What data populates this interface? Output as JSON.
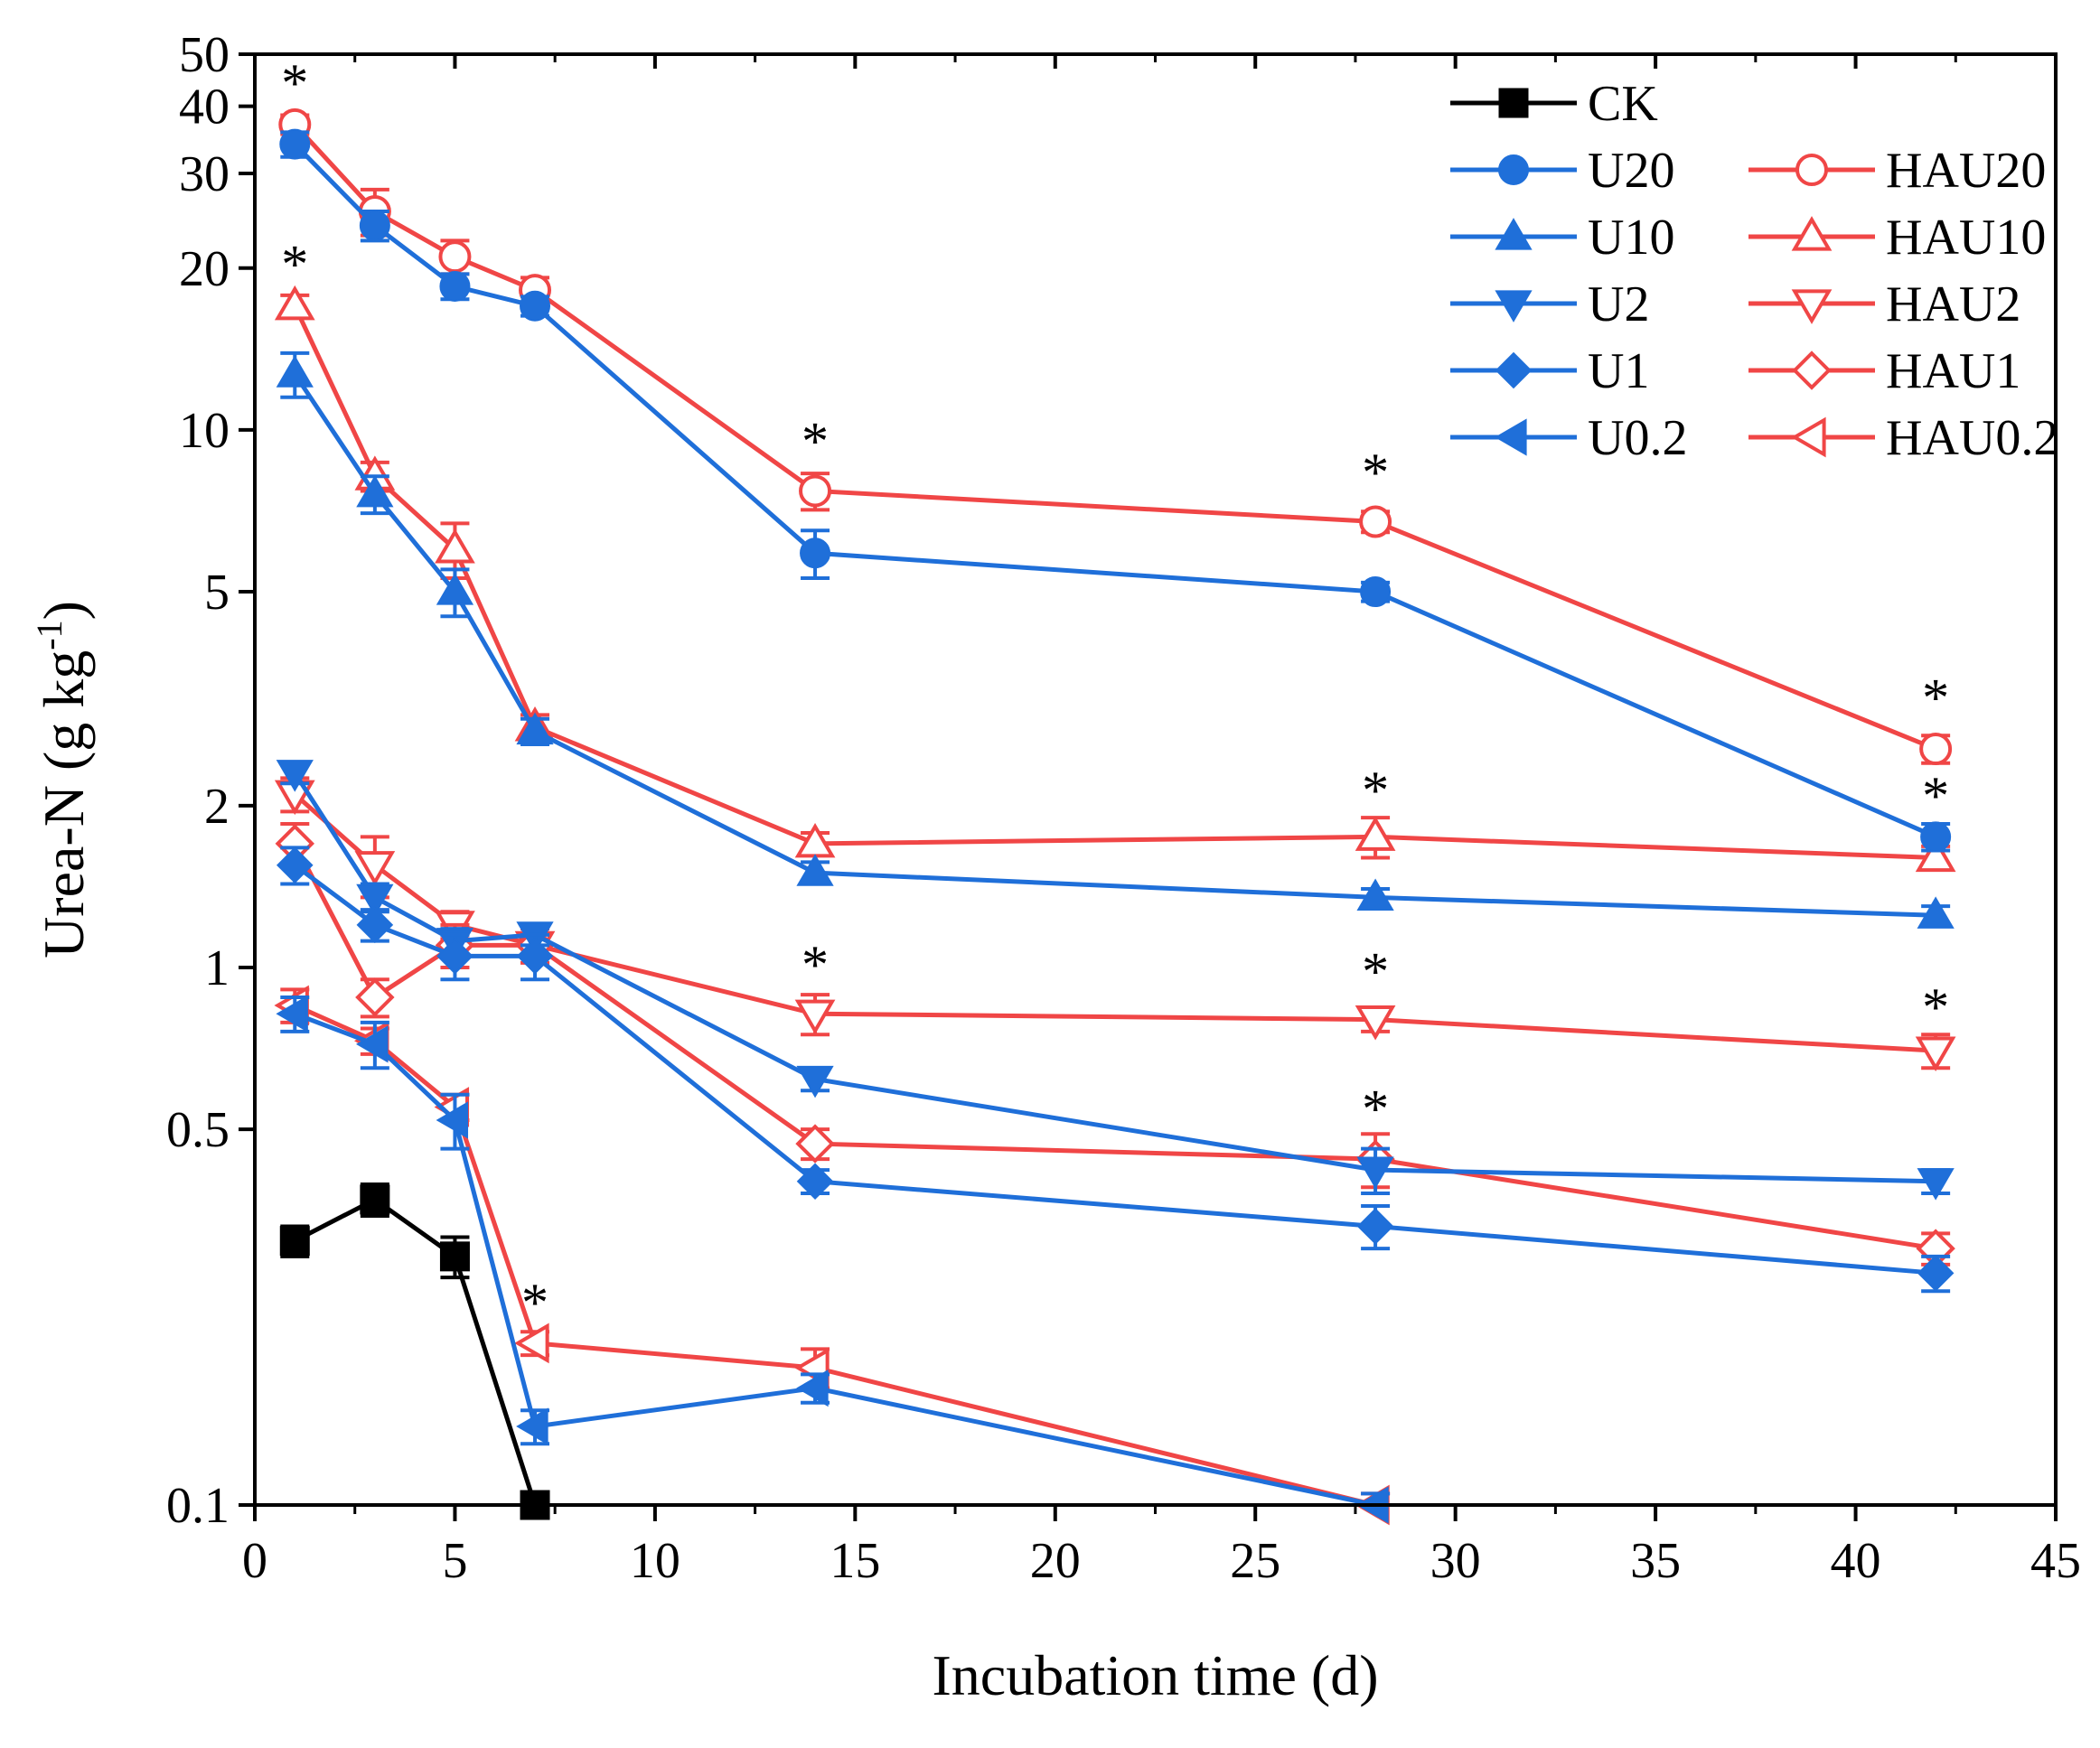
{
  "chart_data": {
    "type": "line",
    "title": "",
    "xlabel": "Incubation time (d)",
    "ylabel_parts": [
      "Urea-N (g kg",
      "-1",
      ")"
    ],
    "xlim": [
      0,
      45
    ],
    "ylim": [
      0.1,
      50
    ],
    "yscale": "log",
    "x_ticks": [
      0,
      5,
      10,
      15,
      20,
      25,
      30,
      35,
      40,
      45
    ],
    "x_tick_labels": [
      "0",
      "5",
      "10",
      "15",
      "20",
      "25",
      "30",
      "35",
      "40",
      "45"
    ],
    "y_ticks": [
      0.1,
      0.5,
      1,
      2,
      5,
      10,
      20,
      30,
      40,
      50
    ],
    "y_tick_labels": [
      "0.1",
      "0.5",
      "1",
      "2",
      "5",
      "10",
      "20",
      "30",
      "40",
      "50"
    ],
    "grid": false,
    "legend_position": "top-right",
    "colors": {
      "ck": "#000000",
      "urea": "#1f6fd9",
      "hau": "#f04646"
    },
    "series": [
      {
        "name": "CK",
        "color": "#000000",
        "marker": "square",
        "filled": true,
        "x": [
          1,
          3,
          5,
          7
        ],
        "values": [
          0.31,
          0.37,
          0.29,
          0.1
        ],
        "err": [
          0.02,
          0.025,
          0.025,
          0.005
        ]
      },
      {
        "name": "U20",
        "color": "#1f6fd9",
        "marker": "circle",
        "filled": true,
        "x": [
          1,
          3,
          5,
          7,
          14,
          28,
          42
        ],
        "values": [
          34,
          24,
          18.5,
          17,
          5.9,
          5.0,
          1.75
        ],
        "err": [
          1.8,
          1.5,
          1.0,
          0.7,
          0.6,
          0.2,
          0.1
        ]
      },
      {
        "name": "U10",
        "color": "#1f6fd9",
        "marker": "triangle-up",
        "filled": true,
        "x": [
          1,
          3,
          5,
          7,
          14,
          28,
          42
        ],
        "values": [
          12.7,
          7.6,
          5.0,
          2.75,
          1.5,
          1.35,
          1.25
        ],
        "err": [
          1.2,
          0.6,
          0.5,
          0.15,
          0.07,
          0.05,
          0.05
        ]
      },
      {
        "name": "U2",
        "color": "#1f6fd9",
        "marker": "triangle-down",
        "filled": true,
        "x": [
          1,
          3,
          5,
          7,
          14,
          28,
          42
        ],
        "values": [
          2.3,
          1.35,
          1.12,
          1.15,
          0.62,
          0.42,
          0.4
        ],
        "err": [
          0.1,
          0.08,
          0.06,
          0.05,
          0.03,
          0.04,
          0.02
        ]
      },
      {
        "name": "U1",
        "color": "#1f6fd9",
        "marker": "diamond",
        "filled": true,
        "x": [
          1,
          3,
          5,
          7,
          14,
          28,
          42
        ],
        "values": [
          1.55,
          1.2,
          1.05,
          1.05,
          0.4,
          0.33,
          0.27
        ],
        "err": [
          0.12,
          0.08,
          0.1,
          0.1,
          0.02,
          0.03,
          0.02
        ]
      },
      {
        "name": "U0.2",
        "color": "#1f6fd9",
        "marker": "triangle-left",
        "filled": true,
        "x": [
          1,
          3,
          5,
          7,
          14,
          28
        ],
        "values": [
          0.82,
          0.72,
          0.52,
          0.14,
          0.165,
          0.1
        ],
        "err": [
          0.06,
          0.07,
          0.06,
          0.01,
          0.01,
          0.005
        ]
      },
      {
        "name": "HAU20",
        "color": "#f04646",
        "marker": "circle",
        "filled": false,
        "x": [
          1,
          3,
          5,
          7,
          14,
          28,
          42
        ],
        "values": [
          37,
          25.5,
          21,
          18.2,
          7.7,
          6.75,
          2.55
        ],
        "err": [
          1.5,
          2.5,
          1.5,
          1.0,
          0.6,
          0.3,
          0.15
        ]
      },
      {
        "name": "HAU10",
        "color": "#f04646",
        "marker": "triangle-up",
        "filled": false,
        "x": [
          1,
          3,
          5,
          7,
          14,
          28,
          42
        ],
        "values": [
          17,
          8.2,
          6.0,
          2.8,
          1.7,
          1.75,
          1.6
        ],
        "err": [
          0.8,
          0.5,
          0.7,
          0.15,
          0.08,
          0.15,
          0.08
        ]
      },
      {
        "name": "HAU2",
        "color": "#f04646",
        "marker": "triangle-down",
        "filled": false,
        "x": [
          1,
          3,
          5,
          7,
          14,
          28,
          42
        ],
        "values": [
          2.1,
          1.55,
          1.2,
          1.1,
          0.82,
          0.8,
          0.7
        ],
        "err": [
          0.15,
          0.2,
          0.07,
          0.05,
          0.07,
          0.04,
          0.05
        ]
      },
      {
        "name": "HAU1",
        "color": "#f04646",
        "marker": "diamond",
        "filled": false,
        "x": [
          1,
          3,
          5,
          7,
          14,
          28,
          42
        ],
        "values": [
          1.7,
          0.88,
          1.1,
          1.1,
          0.47,
          0.44,
          0.3
        ],
        "err": [
          0.15,
          0.07,
          0.1,
          0.08,
          0.03,
          0.05,
          0.02
        ]
      },
      {
        "name": "HAU0.2",
        "color": "#f04646",
        "marker": "triangle-left",
        "filled": false,
        "x": [
          1,
          3,
          5,
          7,
          14,
          28
        ],
        "values": [
          0.85,
          0.73,
          0.55,
          0.2,
          0.18,
          0.1
        ],
        "err": [
          0.06,
          0.04,
          0.03,
          0.01,
          0.015,
          0.005
        ]
      }
    ],
    "annotations": [
      {
        "text": "*",
        "x": 1,
        "y": 44.5
      },
      {
        "text": "*",
        "x": 1,
        "y": 20.5
      },
      {
        "text": "*",
        "x": 14,
        "y": 9.6
      },
      {
        "text": "*",
        "x": 28,
        "y": 8.4
      },
      {
        "text": "*",
        "x": 42,
        "y": 3.2
      },
      {
        "text": "*",
        "x": 42,
        "y": 2.1
      },
      {
        "text": "*",
        "x": 28,
        "y": 2.15
      },
      {
        "text": "*",
        "x": 14,
        "y": 1.02
      },
      {
        "text": "*",
        "x": 28,
        "y": 0.99
      },
      {
        "text": "*",
        "x": 42,
        "y": 0.85
      },
      {
        "text": "*",
        "x": 28,
        "y": 0.55
      },
      {
        "text": "*",
        "x": 7,
        "y": 0.24
      }
    ],
    "legend_layout": [
      [
        "CK"
      ],
      [
        "U20",
        "HAU20"
      ],
      [
        "U10",
        "HAU10"
      ],
      [
        "U2",
        "HAU2"
      ],
      [
        "U1",
        "HAU1"
      ],
      [
        "U0.2",
        "HAU0.2"
      ]
    ]
  }
}
